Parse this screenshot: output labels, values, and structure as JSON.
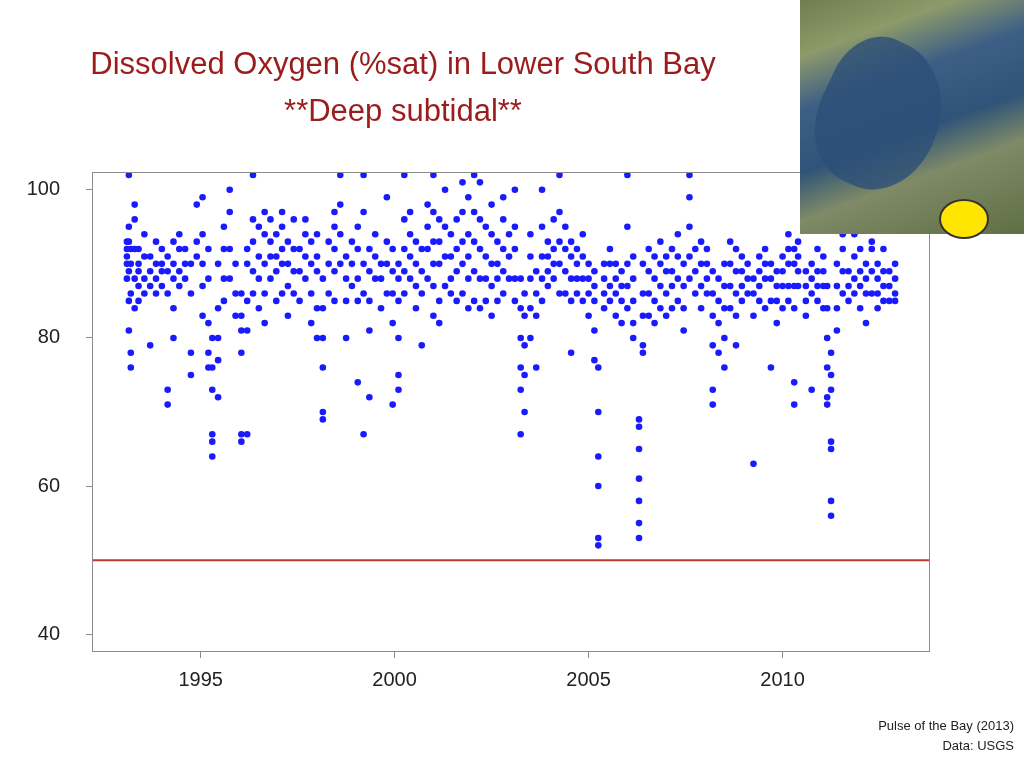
{
  "chart_data": {
    "type": "scatter",
    "title": "Dissolved Oxygen (%sat) in Lower South Bay",
    "subtitle": "**Deep subtidal**",
    "source": "Pulse of the Bay (2013)",
    "credit": "Data: USGS",
    "color": "#1a1aff",
    "marker": "circle",
    "grid": false,
    "xlim": [
      1992.2,
      2013.8
    ],
    "xticks": [
      1995,
      2000,
      2005,
      2010
    ],
    "ylim": [
      37.6,
      102.4
    ],
    "yticks": [
      40,
      60,
      80,
      100
    ],
    "reference_line": {
      "value": 50,
      "color": "#c0392b"
    },
    "x": [
      1993.1,
      1993.1,
      1993.1,
      1993.1,
      1993.1,
      1993.15,
      1993.15,
      1993.15,
      1993.15,
      1993.15,
      1993.15,
      1993.2,
      1993.2,
      1993.2,
      1993.2,
      1993.2,
      1993.3,
      1993.3,
      1993.3,
      1993.3,
      1993.3,
      1993.4,
      1993.4,
      1993.4,
      1993.4,
      1993.4,
      1993.55,
      1993.55,
      1993.55,
      1993.55,
      1993.7,
      1993.7,
      1993.7,
      1993.7,
      1993.85,
      1993.85,
      1993.85,
      1993.85,
      1994.0,
      1994.0,
      1994.0,
      1994.0,
      1994.15,
      1994.15,
      1994.15,
      1994.15,
      1994.15,
      1994.3,
      1994.3,
      1994.3,
      1994.3,
      1994.3,
      1994.45,
      1994.45,
      1994.45,
      1994.45,
      1994.6,
      1994.6,
      1994.6,
      1994.75,
      1994.75,
      1994.75,
      1994.75,
      1994.9,
      1994.9,
      1994.9,
      1995.05,
      1995.05,
      1995.05,
      1995.05,
      1995.05,
      1995.2,
      1995.2,
      1995.2,
      1995.2,
      1995.2,
      1995.3,
      1995.3,
      1995.3,
      1995.3,
      1995.3,
      1995.3,
      1995.45,
      1995.45,
      1995.45,
      1995.45,
      1995.45,
      1995.6,
      1995.6,
      1995.6,
      1995.6,
      1995.75,
      1995.75,
      1995.75,
      1995.75,
      1995.9,
      1995.9,
      1995.9,
      1996.05,
      1996.05,
      1996.05,
      1996.05,
      1996.05,
      1996.05,
      1996.2,
      1996.2,
      1996.2,
      1996.2,
      1996.2,
      1996.35,
      1996.35,
      1996.35,
      1996.35,
      1996.35,
      1996.5,
      1996.5,
      1996.5,
      1996.5,
      1996.65,
      1996.65,
      1996.65,
      1996.65,
      1996.65,
      1996.8,
      1996.8,
      1996.8,
      1996.8,
      1996.95,
      1996.95,
      1996.95,
      1996.95,
      1997.1,
      1997.1,
      1997.1,
      1997.1,
      1997.1,
      1997.25,
      1997.25,
      1997.25,
      1997.25,
      1997.4,
      1997.4,
      1997.4,
      1997.4,
      1997.55,
      1997.55,
      1997.55,
      1997.7,
      1997.7,
      1997.7,
      1997.7,
      1997.85,
      1997.85,
      1997.85,
      1997.85,
      1998.0,
      1998.0,
      1998.0,
      1998.0,
      1998.0,
      1998.15,
      1998.15,
      1998.15,
      1998.15,
      1998.15,
      1998.15,
      1998.3,
      1998.3,
      1998.3,
      1998.45,
      1998.45,
      1998.45,
      1998.45,
      1998.45,
      1998.6,
      1998.6,
      1998.6,
      1998.6,
      1998.75,
      1998.75,
      1998.75,
      1998.75,
      1998.9,
      1998.9,
      1998.9,
      1999.05,
      1999.05,
      1999.05,
      1999.05,
      1999.05,
      1999.2,
      1999.2,
      1999.2,
      1999.2,
      1999.2,
      1999.35,
      1999.35,
      1999.35,
      1999.35,
      1999.35,
      1999.5,
      1999.5,
      1999.5,
      1999.65,
      1999.65,
      1999.65,
      1999.8,
      1999.8,
      1999.8,
      1999.8,
      1999.95,
      1999.95,
      1999.95,
      1999.95,
      1999.95,
      2000.1,
      2000.1,
      2000.1,
      2000.1,
      2000.1,
      2000.1,
      2000.25,
      2000.25,
      2000.25,
      2000.25,
      2000.25,
      2000.4,
      2000.4,
      2000.4,
      2000.4,
      2000.55,
      2000.55,
      2000.55,
      2000.55,
      2000.7,
      2000.7,
      2000.7,
      2000.7,
      2000.85,
      2000.85,
      2000.85,
      2000.85,
      2001.0,
      2001.0,
      2001.0,
      2001.0,
      2001.0,
      2001.0,
      2001.15,
      2001.15,
      2001.15,
      2001.15,
      2001.15,
      2001.3,
      2001.3,
      2001.3,
      2001.3,
      2001.45,
      2001.45,
      2001.45,
      2001.45,
      2001.6,
      2001.6,
      2001.6,
      2001.6,
      2001.75,
      2001.75,
      2001.75,
      2001.75,
      2001.75,
      2001.9,
      2001.9,
      2001.9,
      2001.9,
      2001.9,
      2002.05,
      2002.05,
      2002.05,
      2002.05,
      2002.05,
      2002.2,
      2002.2,
      2002.2,
      2002.2,
      2002.2,
      2002.35,
      2002.35,
      2002.35,
      2002.35,
      2002.5,
      2002.5,
      2002.5,
      2002.5,
      2002.5,
      2002.65,
      2002.65,
      2002.65,
      2002.65,
      2002.8,
      2002.8,
      2002.8,
      2002.8,
      2002.8,
      2002.95,
      2002.95,
      2002.95,
      2003.1,
      2003.1,
      2003.1,
      2003.1,
      2003.1,
      2003.25,
      2003.25,
      2003.25,
      2003.25,
      2003.25,
      2003.25,
      2003.35,
      2003.35,
      2003.35,
      2003.35,
      2003.35,
      2003.5,
      2003.5,
      2003.5,
      2003.5,
      2003.5,
      2003.65,
      2003.65,
      2003.65,
      2003.65,
      2003.8,
      2003.8,
      2003.8,
      2003.8,
      2003.8,
      2003.95,
      2003.95,
      2003.95,
      2003.95,
      2004.1,
      2004.1,
      2004.1,
      2004.1,
      2004.25,
      2004.25,
      2004.25,
      2004.25,
      2004.25,
      2004.4,
      2004.4,
      2004.4,
      2004.4,
      2004.55,
      2004.55,
      2004.55,
      2004.55,
      2004.55,
      2004.7,
      2004.7,
      2004.7,
      2004.7,
      2004.85,
      2004.85,
      2004.85,
      2004.85,
      2005.0,
      2005.0,
      2005.0,
      2005.0,
      2005.15,
      2005.15,
      2005.15,
      2005.15,
      2005.15,
      2005.25,
      2005.25,
      2005.25,
      2005.25,
      2005.25,
      2005.25,
      2005.4,
      2005.4,
      2005.4,
      2005.4,
      2005.55,
      2005.55,
      2005.55,
      2005.55,
      2005.7,
      2005.7,
      2005.7,
      2005.7,
      2005.85,
      2005.85,
      2005.85,
      2005.85,
      2006.0,
      2006.0,
      2006.0,
      2006.0,
      2006.0,
      2006.15,
      2006.15,
      2006.15,
      2006.15,
      2006.15,
      2006.3,
      2006.3,
      2006.3,
      2006.3,
      2006.3,
      2006.3,
      2006.3,
      2006.4,
      2006.4,
      2006.4,
      2006.4,
      2006.4,
      2006.55,
      2006.55,
      2006.55,
      2006.55,
      2006.7,
      2006.7,
      2006.7,
      2006.7,
      2006.85,
      2006.85,
      2006.85,
      2006.85,
      2007.0,
      2007.0,
      2007.0,
      2007.0,
      2007.15,
      2007.15,
      2007.15,
      2007.15,
      2007.3,
      2007.3,
      2007.3,
      2007.3,
      2007.45,
      2007.45,
      2007.45,
      2007.45,
      2007.6,
      2007.6,
      2007.6,
      2007.6,
      2007.6,
      2007.75,
      2007.75,
      2007.75,
      2007.9,
      2007.9,
      2007.9,
      2007.9,
      2008.05,
      2008.05,
      2008.05,
      2008.05,
      2008.2,
      2008.2,
      2008.2,
      2008.2,
      2008.2,
      2008.2,
      2008.35,
      2008.35,
      2008.35,
      2008.35,
      2008.5,
      2008.5,
      2008.5,
      2008.5,
      2008.5,
      2008.65,
      2008.65,
      2008.65,
      2008.65,
      2008.8,
      2008.8,
      2008.8,
      2008.8,
      2008.8,
      2008.95,
      2008.95,
      2008.95,
      2008.95,
      2009.1,
      2009.1,
      2009.1,
      2009.25,
      2009.25,
      2009.25,
      2009.25,
      2009.4,
      2009.4,
      2009.4,
      2009.4,
      2009.55,
      2009.55,
      2009.55,
      2009.55,
      2009.7,
      2009.7,
      2009.7,
      2009.7,
      2009.85,
      2009.85,
      2009.85,
      2009.85,
      2010.0,
      2010.0,
      2010.0,
      2010.0,
      2010.15,
      2010.15,
      2010.15,
      2010.15,
      2010.15,
      2010.3,
      2010.3,
      2010.3,
      2010.3,
      2010.3,
      2010.3,
      2010.4,
      2010.4,
      2010.4,
      2010.4,
      2010.6,
      2010.6,
      2010.6,
      2010.6,
      2010.75,
      2010.75,
      2010.75,
      2010.75,
      2010.9,
      2010.9,
      2010.9,
      2010.9,
      2011.05,
      2011.05,
      2011.05,
      2011.05,
      2011.15,
      2011.15,
      2011.15,
      2011.15,
      2011.15,
      2011.15,
      2011.25,
      2011.25,
      2011.25,
      2011.25,
      2011.25,
      2011.25,
      2011.25,
      2011.4,
      2011.4,
      2011.4,
      2011.4,
      2011.55,
      2011.55,
      2011.55,
      2011.55,
      2011.7,
      2011.7,
      2011.7,
      2011.85,
      2011.85,
      2011.85,
      2011.85,
      2012.0,
      2012.0,
      2012.0,
      2012.0,
      2012.15,
      2012.15,
      2012.15,
      2012.15,
      2012.3,
      2012.3,
      2012.3,
      2012.3,
      2012.45,
      2012.45,
      2012.45,
      2012.45,
      2012.6,
      2012.6,
      2012.6,
      2012.6,
      2012.75,
      2012.75,
      2012.75,
      2012.9,
      2012.9,
      2012.9,
      2012.9
    ],
    "values": [
      93,
      91,
      90,
      88,
      92,
      102,
      95,
      93,
      89,
      85,
      81,
      76,
      78,
      86,
      90,
      92,
      98,
      96,
      92,
      88,
      84,
      92,
      90,
      89,
      87,
      85,
      94,
      91,
      88,
      86,
      91,
      89,
      87,
      79,
      93,
      90,
      88,
      86,
      92,
      90,
      89,
      87,
      91,
      89,
      86,
      73,
      71,
      93,
      90,
      88,
      84,
      80,
      94,
      92,
      89,
      87,
      92,
      90,
      88,
      90,
      86,
      78,
      75,
      98,
      93,
      91,
      99,
      94,
      90,
      87,
      83,
      92,
      88,
      82,
      78,
      76,
      80,
      76,
      73,
      67,
      66,
      64,
      90,
      84,
      80,
      77,
      72,
      95,
      92,
      88,
      85,
      100,
      97,
      92,
      88,
      90,
      86,
      83,
      86,
      83,
      81,
      78,
      67,
      66,
      92,
      90,
      85,
      81,
      67,
      102,
      96,
      93,
      89,
      86,
      95,
      91,
      88,
      84,
      97,
      94,
      90,
      86,
      82,
      96,
      93,
      91,
      88,
      94,
      91,
      89,
      85,
      97,
      95,
      92,
      90,
      86,
      93,
      90,
      87,
      83,
      96,
      92,
      89,
      86,
      92,
      89,
      85,
      96,
      94,
      91,
      88,
      93,
      90,
      86,
      82,
      94,
      91,
      89,
      84,
      80,
      88,
      84,
      80,
      76,
      70,
      69,
      93,
      90,
      86,
      97,
      95,
      92,
      89,
      85,
      102,
      98,
      94,
      90,
      91,
      88,
      85,
      80,
      93,
      90,
      87,
      95,
      92,
      88,
      85,
      74,
      102,
      97,
      90,
      86,
      67,
      92,
      89,
      85,
      81,
      72,
      94,
      91,
      88,
      90,
      88,
      84,
      99,
      93,
      90,
      86,
      92,
      89,
      86,
      82,
      71,
      90,
      88,
      85,
      80,
      75,
      73,
      102,
      96,
      92,
      89,
      86,
      97,
      94,
      91,
      88,
      93,
      90,
      87,
      84,
      92,
      89,
      86,
      79,
      98,
      95,
      92,
      88,
      102,
      97,
      93,
      90,
      87,
      83,
      96,
      93,
      90,
      85,
      82,
      100,
      95,
      91,
      87,
      94,
      91,
      88,
      86,
      96,
      92,
      89,
      85,
      101,
      97,
      93,
      90,
      86,
      99,
      94,
      91,
      88,
      84,
      102,
      97,
      93,
      89,
      85,
      101,
      96,
      92,
      88,
      84,
      95,
      91,
      88,
      85,
      98,
      94,
      90,
      87,
      83,
      93,
      90,
      88,
      85,
      99,
      96,
      92,
      89,
      86,
      94,
      91,
      88,
      100,
      95,
      92,
      88,
      85,
      88,
      84,
      80,
      76,
      73,
      67,
      86,
      83,
      79,
      75,
      70,
      94,
      91,
      88,
      84,
      80,
      89,
      86,
      83,
      76,
      100,
      95,
      91,
      88,
      85,
      93,
      91,
      89,
      87,
      96,
      92,
      90,
      88,
      102,
      97,
      93,
      90,
      86,
      95,
      92,
      89,
      86,
      93,
      91,
      88,
      85,
      78,
      92,
      90,
      88,
      86,
      94,
      91,
      88,
      85,
      90,
      88,
      86,
      83,
      89,
      87,
      85,
      81,
      77,
      76,
      70,
      64,
      60,
      53,
      52,
      90,
      88,
      86,
      84,
      92,
      90,
      87,
      85,
      90,
      88,
      86,
      83,
      89,
      87,
      85,
      82,
      102,
      95,
      90,
      87,
      84,
      91,
      88,
      85,
      82,
      80,
      69,
      68,
      65,
      61,
      58,
      55,
      53,
      90,
      86,
      83,
      79,
      78,
      92,
      89,
      86,
      83,
      91,
      88,
      85,
      82,
      93,
      90,
      87,
      84,
      91,
      89,
      86,
      83,
      92,
      89,
      87,
      84,
      94,
      91,
      88,
      85,
      90,
      87,
      84,
      81,
      102,
      99,
      95,
      91,
      88,
      92,
      89,
      86,
      93,
      90,
      87,
      84,
      92,
      90,
      88,
      86,
      89,
      86,
      83,
      79,
      71,
      73,
      88,
      85,
      82,
      78,
      90,
      87,
      84,
      80,
      76,
      93,
      90,
      87,
      84,
      92,
      89,
      86,
      83,
      79,
      91,
      89,
      87,
      85,
      90,
      88,
      86,
      88,
      86,
      83,
      63,
      91,
      89,
      87,
      85,
      92,
      90,
      88,
      84,
      90,
      88,
      85,
      76,
      89,
      87,
      85,
      82,
      91,
      89,
      87,
      84,
      94,
      92,
      90,
      87,
      85,
      92,
      90,
      87,
      84,
      74,
      71,
      93,
      91,
      89,
      87,
      89,
      87,
      85,
      83,
      90,
      88,
      86,
      73,
      92,
      89,
      87,
      85,
      91,
      89,
      87,
      84,
      87,
      84,
      80,
      76,
      72,
      71,
      78,
      75,
      73,
      66,
      65,
      58,
      56,
      90,
      87,
      84,
      81,
      94,
      92,
      89,
      86,
      89,
      87,
      85,
      94,
      91,
      88,
      86,
      92,
      89,
      87,
      84,
      90,
      88,
      86,
      82,
      93,
      92,
      89,
      86,
      90,
      88,
      86,
      84,
      92,
      89,
      87,
      85,
      89,
      87,
      85,
      90,
      88,
      86,
      85
    ]
  }
}
